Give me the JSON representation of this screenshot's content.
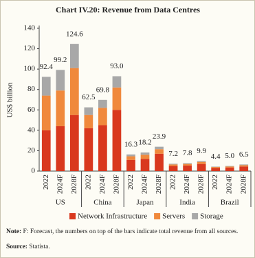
{
  "chart_data": {
    "type": "stacked-bar",
    "title": "Chart IV.20: Revenue from Data Centres",
    "y_label": "US$ billion",
    "groups": [
      {
        "name": "US",
        "categories": [
          "2022",
          "2024F",
          "2028F"
        ]
      },
      {
        "name": "China",
        "categories": [
          "2022",
          "2024F",
          "2028F"
        ]
      },
      {
        "name": "Japan",
        "categories": [
          "2022",
          "2024F",
          "2028F"
        ]
      },
      {
        "name": "India",
        "categories": [
          "2022",
          "2024F",
          "2028F"
        ]
      },
      {
        "name": "Brazil",
        "categories": [
          "2022",
          "2024F",
          "2028F"
        ]
      }
    ],
    "series": [
      {
        "name": "Network Infrastructure",
        "color": "#d9381e",
        "values": [
          40,
          44,
          55,
          42,
          45,
          60,
          11,
          12,
          17,
          5,
          5.5,
          7,
          3,
          3.5,
          4.5
        ]
      },
      {
        "name": "Servers",
        "color": "#f0893c",
        "values": [
          34,
          35,
          46,
          13,
          17,
          22,
          3.5,
          4,
          4.5,
          1.5,
          1.5,
          2,
          1,
          1,
          1.3
        ]
      },
      {
        "name": "Storage",
        "color": "#a8a8a8",
        "values": [
          18.4,
          20.2,
          23.6,
          7.5,
          7.8,
          11,
          1.8,
          2.2,
          2.4,
          0.7,
          0.8,
          0.9,
          0.4,
          0.5,
          0.7
        ]
      }
    ],
    "totals": {
      "values": [
        92.4,
        99.2,
        124.6,
        62.5,
        69.8,
        93.0,
        16.3,
        18.2,
        23.9,
        7.2,
        7.8,
        9.9,
        4.4,
        5.0,
        6.5
      ],
      "value_labels": [
        "92.4",
        "99.2",
        "124.6",
        "62.5",
        "69.8",
        "93.0",
        "16.3",
        "18.2",
        "23.9",
        "7.2",
        "7.8",
        "9.9",
        "4.4",
        "5.0",
        "6.5"
      ]
    },
    "ylim": [
      0,
      140
    ],
    "yticks": [
      0,
      20,
      40,
      60,
      80,
      100,
      120,
      140
    ],
    "note_label": "Note:",
    "note": "F: Forecast, the numbers on top of the bars indicate total revenue from all sources.",
    "source_label": "Source:",
    "source": "Statista."
  }
}
